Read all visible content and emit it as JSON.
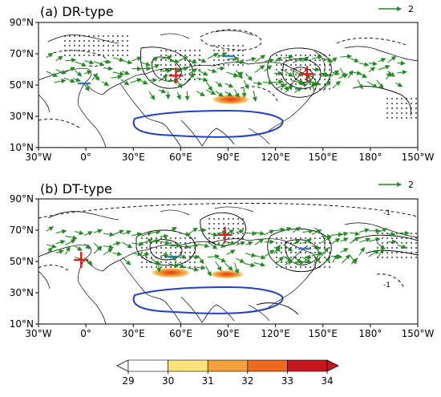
{
  "panels": [
    {
      "title": "(a) DR-type",
      "ref_vector_label": "2",
      "contour_labels": []
    },
    {
      "title": "(b) DT-type",
      "ref_vector_label": "2",
      "contour_labels": [
        "-1",
        "2",
        "-1"
      ]
    }
  ],
  "axes": {
    "lat_ticks": [
      "90°N",
      "70°N",
      "50°N",
      "30°N",
      "10°N"
    ],
    "lon_ticks": [
      "30°W",
      "0°",
      "30°E",
      "60°E",
      "90°E",
      "120°E",
      "150°E",
      "180°",
      "150°W"
    ]
  },
  "colorbar": {
    "ticks": [
      "29",
      "30",
      "31",
      "32",
      "33",
      "34"
    ],
    "colors": [
      "#ffffff",
      "#fbe27a",
      "#f6a23c",
      "#ef6a1f",
      "#c8171c"
    ]
  },
  "colors": {
    "vector": "#1e8c1e",
    "contour": "#000000",
    "cross_marker": "#e41a1c",
    "tibet_outline": "#1f3fd0",
    "small_bar": "#2f79d9"
  },
  "markers": {
    "a": {
      "crosses": [
        [
          57,
          56
        ],
        [
          140,
          57
        ]
      ]
    },
    "b": {
      "crosses": [
        [
          -3,
          51
        ],
        [
          88,
          67
        ]
      ]
    }
  }
}
